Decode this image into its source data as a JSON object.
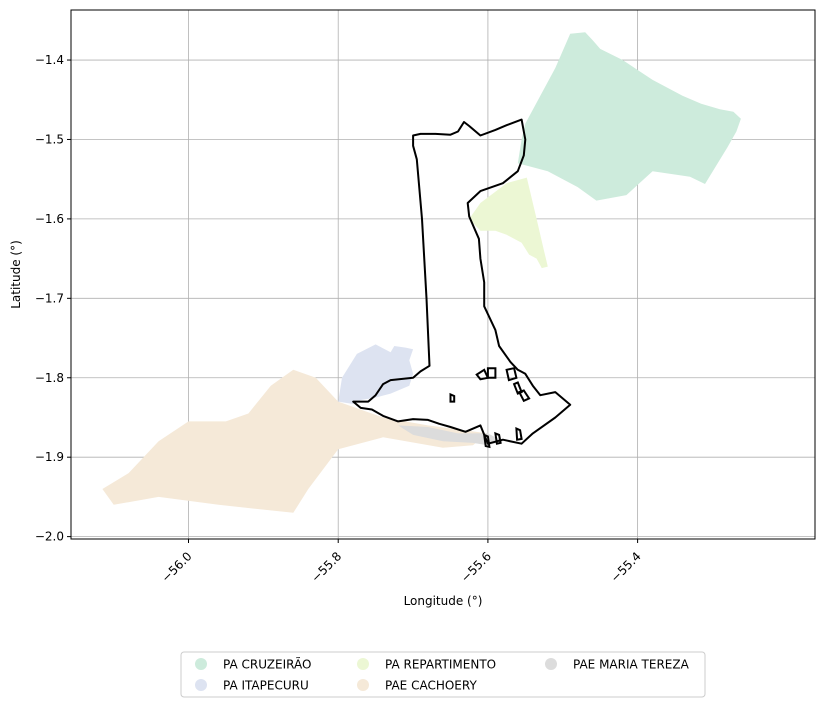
{
  "chart_data": {
    "type": "map",
    "xlabel": "Longitude (°)",
    "ylabel": "Latitude (°)",
    "xlim": [
      -56.157,
      -55.163
    ],
    "ylim": [
      -2.003,
      -1.337
    ],
    "xticks": [
      -56.0,
      -55.8,
      -55.6,
      -55.4
    ],
    "xtick_labels": [
      "−56.0",
      "−55.8",
      "−55.6",
      "−55.4"
    ],
    "yticks": [
      -1.4,
      -1.5,
      -1.6,
      -1.7,
      -1.8,
      -1.9,
      -2.0
    ],
    "ytick_labels": [
      "−1.4",
      "−1.5",
      "−1.6",
      "−1.7",
      "−1.8",
      "−1.9",
      "−2.0"
    ],
    "grid": true,
    "legend_position": "bottom-center",
    "legend_columns": 3,
    "regions": [
      {
        "name": "PA CRUZEIRÃO",
        "color": "#cdebdc",
        "polygon": [
          [
            -55.55,
            -1.48
          ],
          [
            -55.51,
            -1.41
          ],
          [
            -55.49,
            -1.367
          ],
          [
            -55.47,
            -1.365
          ],
          [
            -55.46,
            -1.375
          ],
          [
            -55.45,
            -1.386
          ],
          [
            -55.42,
            -1.4
          ],
          [
            -55.38,
            -1.425
          ],
          [
            -55.34,
            -1.445
          ],
          [
            -55.315,
            -1.455
          ],
          [
            -55.29,
            -1.462
          ],
          [
            -55.272,
            -1.465
          ],
          [
            -55.262,
            -1.474
          ],
          [
            -55.268,
            -1.49
          ],
          [
            -55.28,
            -1.51
          ],
          [
            -55.31,
            -1.556
          ],
          [
            -55.33,
            -1.547
          ],
          [
            -55.38,
            -1.54
          ],
          [
            -55.415,
            -1.57
          ],
          [
            -55.455,
            -1.577
          ],
          [
            -55.48,
            -1.56
          ],
          [
            -55.52,
            -1.54
          ],
          [
            -55.56,
            -1.53
          ],
          [
            -55.555,
            -1.5
          ]
        ]
      },
      {
        "name": "PA ITAPECURU",
        "color": "#dde3f1",
        "polygon": [
          [
            -55.8,
            -1.83
          ],
          [
            -55.795,
            -1.8
          ],
          [
            -55.775,
            -1.77
          ],
          [
            -55.75,
            -1.758
          ],
          [
            -55.73,
            -1.768
          ],
          [
            -55.725,
            -1.76
          ],
          [
            -55.71,
            -1.762
          ],
          [
            -55.7,
            -1.764
          ],
          [
            -55.705,
            -1.778
          ],
          [
            -55.7,
            -1.795
          ],
          [
            -55.705,
            -1.81
          ],
          [
            -55.73,
            -1.82
          ],
          [
            -55.75,
            -1.825
          ],
          [
            -55.77,
            -1.828
          ],
          [
            -55.78,
            -1.833
          ]
        ]
      },
      {
        "name": "PA REPARTIMENTO",
        "color": "#ecf7d4",
        "polygon": [
          [
            -55.61,
            -1.58
          ],
          [
            -55.575,
            -1.555
          ],
          [
            -55.548,
            -1.548
          ],
          [
            -55.535,
            -1.6
          ],
          [
            -55.525,
            -1.64
          ],
          [
            -55.52,
            -1.66
          ],
          [
            -55.528,
            -1.662
          ],
          [
            -55.535,
            -1.65
          ],
          [
            -55.545,
            -1.645
          ],
          [
            -55.555,
            -1.63
          ],
          [
            -55.575,
            -1.62
          ],
          [
            -55.59,
            -1.615
          ],
          [
            -55.61,
            -1.615
          ],
          [
            -55.625,
            -1.6
          ]
        ]
      },
      {
        "name": "PAE CACHOERY",
        "color": "#f5e9d8",
        "polygon": [
          [
            -56.115,
            -1.94
          ],
          [
            -56.08,
            -1.92
          ],
          [
            -56.04,
            -1.88
          ],
          [
            -56.0,
            -1.855
          ],
          [
            -55.95,
            -1.855
          ],
          [
            -55.92,
            -1.845
          ],
          [
            -55.89,
            -1.81
          ],
          [
            -55.86,
            -1.79
          ],
          [
            -55.83,
            -1.8
          ],
          [
            -55.8,
            -1.83
          ],
          [
            -55.74,
            -1.85
          ],
          [
            -55.68,
            -1.86
          ],
          [
            -55.6,
            -1.87
          ],
          [
            -55.62,
            -1.885
          ],
          [
            -55.66,
            -1.888
          ],
          [
            -55.74,
            -1.875
          ],
          [
            -55.8,
            -1.89
          ],
          [
            -55.84,
            -1.94
          ],
          [
            -55.86,
            -1.97
          ],
          [
            -55.96,
            -1.96
          ],
          [
            -56.04,
            -1.95
          ],
          [
            -56.1,
            -1.96
          ]
        ]
      },
      {
        "name": "PAE MARIA TEREZA",
        "color": "#dcdcdc",
        "polygon": [
          [
            -55.72,
            -1.86
          ],
          [
            -55.68,
            -1.862
          ],
          [
            -55.64,
            -1.87
          ],
          [
            -55.6,
            -1.87
          ],
          [
            -55.58,
            -1.88
          ],
          [
            -55.6,
            -1.885
          ],
          [
            -55.62,
            -1.882
          ],
          [
            -55.66,
            -1.88
          ],
          [
            -55.7,
            -1.872
          ]
        ]
      }
    ],
    "boundary": {
      "color": "#000000",
      "polygon": [
        [
          -55.7,
          -1.495
        ],
        [
          -55.69,
          -1.493
        ],
        [
          -55.67,
          -1.493
        ],
        [
          -55.65,
          -1.494
        ],
        [
          -55.64,
          -1.49
        ],
        [
          -55.632,
          -1.478
        ],
        [
          -55.625,
          -1.483
        ],
        [
          -55.61,
          -1.495
        ],
        [
          -55.59,
          -1.488
        ],
        [
          -55.575,
          -1.482
        ],
        [
          -55.555,
          -1.475
        ],
        [
          -55.55,
          -1.5
        ],
        [
          -55.552,
          -1.52
        ],
        [
          -55.56,
          -1.54
        ],
        [
          -55.58,
          -1.555
        ],
        [
          -55.61,
          -1.565
        ],
        [
          -55.627,
          -1.58
        ],
        [
          -55.625,
          -1.597
        ],
        [
          -55.612,
          -1.625
        ],
        [
          -55.61,
          -1.65
        ],
        [
          -55.605,
          -1.68
        ],
        [
          -55.605,
          -1.71
        ],
        [
          -55.59,
          -1.74
        ],
        [
          -55.585,
          -1.76
        ],
        [
          -55.57,
          -1.78
        ],
        [
          -55.56,
          -1.79
        ],
        [
          -55.55,
          -1.795
        ],
        [
          -55.54,
          -1.81
        ],
        [
          -55.53,
          -1.822
        ],
        [
          -55.51,
          -1.818
        ],
        [
          -55.49,
          -1.834
        ],
        [
          -55.51,
          -1.85
        ],
        [
          -55.54,
          -1.87
        ],
        [
          -55.555,
          -1.883
        ],
        [
          -55.58,
          -1.878
        ],
        [
          -55.6,
          -1.883
        ],
        [
          -55.61,
          -1.86
        ],
        [
          -55.63,
          -1.868
        ],
        [
          -55.65,
          -1.862
        ],
        [
          -55.665,
          -1.858
        ],
        [
          -55.68,
          -1.853
        ],
        [
          -55.7,
          -1.852
        ],
        [
          -55.72,
          -1.855
        ],
        [
          -55.74,
          -1.848
        ],
        [
          -55.755,
          -1.84
        ],
        [
          -55.77,
          -1.838
        ],
        [
          -55.78,
          -1.83
        ],
        [
          -55.76,
          -1.83
        ],
        [
          -55.75,
          -1.822
        ],
        [
          -55.74,
          -1.808
        ],
        [
          -55.73,
          -1.803
        ],
        [
          -55.7,
          -1.8
        ],
        [
          -55.69,
          -1.792
        ],
        [
          -55.678,
          -1.785
        ],
        [
          -55.682,
          -1.7
        ],
        [
          -55.688,
          -1.6
        ],
        [
          -55.695,
          -1.525
        ],
        [
          -55.7,
          -1.508
        ]
      ],
      "islands": [
        [
          [
            -55.615,
            -1.796
          ],
          [
            -55.605,
            -1.79
          ],
          [
            -55.6,
            -1.8
          ],
          [
            -55.61,
            -1.802
          ]
        ],
        [
          [
            -55.6,
            -1.788
          ],
          [
            -55.59,
            -1.788
          ],
          [
            -55.59,
            -1.8
          ],
          [
            -55.6,
            -1.8
          ]
        ],
        [
          [
            -55.575,
            -1.79
          ],
          [
            -55.565,
            -1.788
          ],
          [
            -55.562,
            -1.8
          ],
          [
            -55.572,
            -1.803
          ]
        ],
        [
          [
            -55.565,
            -1.808
          ],
          [
            -55.56,
            -1.806
          ],
          [
            -55.555,
            -1.818
          ],
          [
            -55.56,
            -1.82
          ]
        ],
        [
          [
            -55.558,
            -1.818
          ],
          [
            -55.552,
            -1.816
          ],
          [
            -55.545,
            -1.826
          ],
          [
            -55.552,
            -1.829
          ]
        ],
        [
          [
            -55.605,
            -1.872
          ],
          [
            -55.6,
            -1.874
          ],
          [
            -55.598,
            -1.887
          ],
          [
            -55.603,
            -1.886
          ]
        ],
        [
          [
            -55.59,
            -1.87
          ],
          [
            -55.585,
            -1.872
          ],
          [
            -55.583,
            -1.882
          ],
          [
            -55.588,
            -1.883
          ]
        ],
        [
          [
            -55.562,
            -1.864
          ],
          [
            -55.557,
            -1.866
          ],
          [
            -55.555,
            -1.877
          ],
          [
            -55.561,
            -1.878
          ]
        ],
        [
          [
            -55.65,
            -1.821
          ],
          [
            -55.645,
            -1.823
          ],
          [
            -55.645,
            -1.83
          ],
          [
            -55.65,
            -1.83
          ]
        ]
      ]
    }
  }
}
